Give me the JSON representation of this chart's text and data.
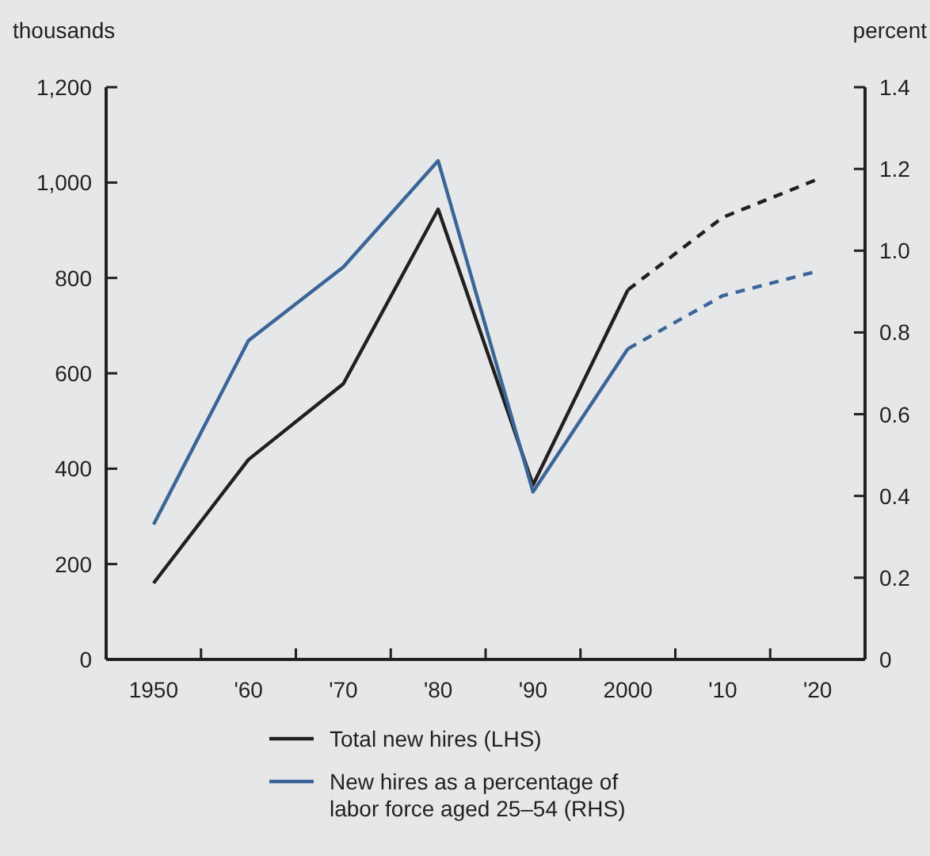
{
  "chart_data": {
    "type": "line",
    "ylabel": "thousands",
    "y2label": "percent",
    "xlim": [
      1945,
      2025
    ],
    "xticks": [
      {
        "value": 1950,
        "label": "1950"
      },
      {
        "value": 1955,
        "label": null
      },
      {
        "value": 1960,
        "label": "'60"
      },
      {
        "value": 1965,
        "label": null
      },
      {
        "value": 1970,
        "label": "'70"
      },
      {
        "value": 1975,
        "label": null
      },
      {
        "value": 1980,
        "label": "'80"
      },
      {
        "value": 1985,
        "label": null
      },
      {
        "value": 1990,
        "label": "'90"
      },
      {
        "value": 1995,
        "label": null
      },
      {
        "value": 2000,
        "label": "2000"
      },
      {
        "value": 2005,
        "label": null
      },
      {
        "value": 2010,
        "label": "'10"
      },
      {
        "value": 2015,
        "label": null
      },
      {
        "value": 2020,
        "label": "'20"
      }
    ],
    "ylim": [
      0,
      1200
    ],
    "yticks": [
      {
        "value": 0,
        "label": "0"
      },
      {
        "value": 200,
        "label": "200"
      },
      {
        "value": 400,
        "label": "400"
      },
      {
        "value": 600,
        "label": "600"
      },
      {
        "value": 800,
        "label": "800"
      },
      {
        "value": 1000,
        "label": "1,000"
      },
      {
        "value": 1200,
        "label": "1,200"
      }
    ],
    "y2lim": [
      0,
      1.4
    ],
    "y2ticks": [
      {
        "value": 0,
        "label": "0"
      },
      {
        "value": 0.2,
        "label": "0.2"
      },
      {
        "value": 0.4,
        "label": "0.4"
      },
      {
        "value": 0.6,
        "label": "0.6"
      },
      {
        "value": 0.8,
        "label": "0.8"
      },
      {
        "value": 1,
        "label": "1.0"
      },
      {
        "value": 1.2,
        "label": "1.2"
      },
      {
        "value": 1.4,
        "label": "1.4"
      }
    ],
    "grid": false,
    "legend": "bottom",
    "series": [
      {
        "name": "Total new hires (LHS)",
        "color": "#231f20",
        "line_style": "solid",
        "x": [
          1950,
          1960,
          1970,
          1980,
          1990,
          2000
        ],
        "values": [
          160,
          419,
          578,
          944,
          366,
          775
        ]
      },
      {
        "color": "#231f20",
        "line_style": "dashed",
        "x": [
          2000,
          2010,
          2020
        ],
        "values": [
          775,
          927,
          1007
        ]
      },
      {
        "name": "New hires as a percentage of labor force aged 25–54 (RHS)",
        "color": "#3a6596",
        "line_style": "solid",
        "axis": "y2",
        "x": [
          1950,
          1960,
          1970,
          1980,
          1990,
          2000
        ],
        "values": [
          0.33,
          0.78,
          0.96,
          1.22,
          0.41,
          0.76
        ]
      },
      {
        "color": "#3a6596",
        "line_style": "dashed",
        "axis": "y2",
        "x": [
          2000,
          2010,
          2020
        ],
        "values": [
          0.76,
          0.89,
          0.95
        ]
      }
    ]
  }
}
